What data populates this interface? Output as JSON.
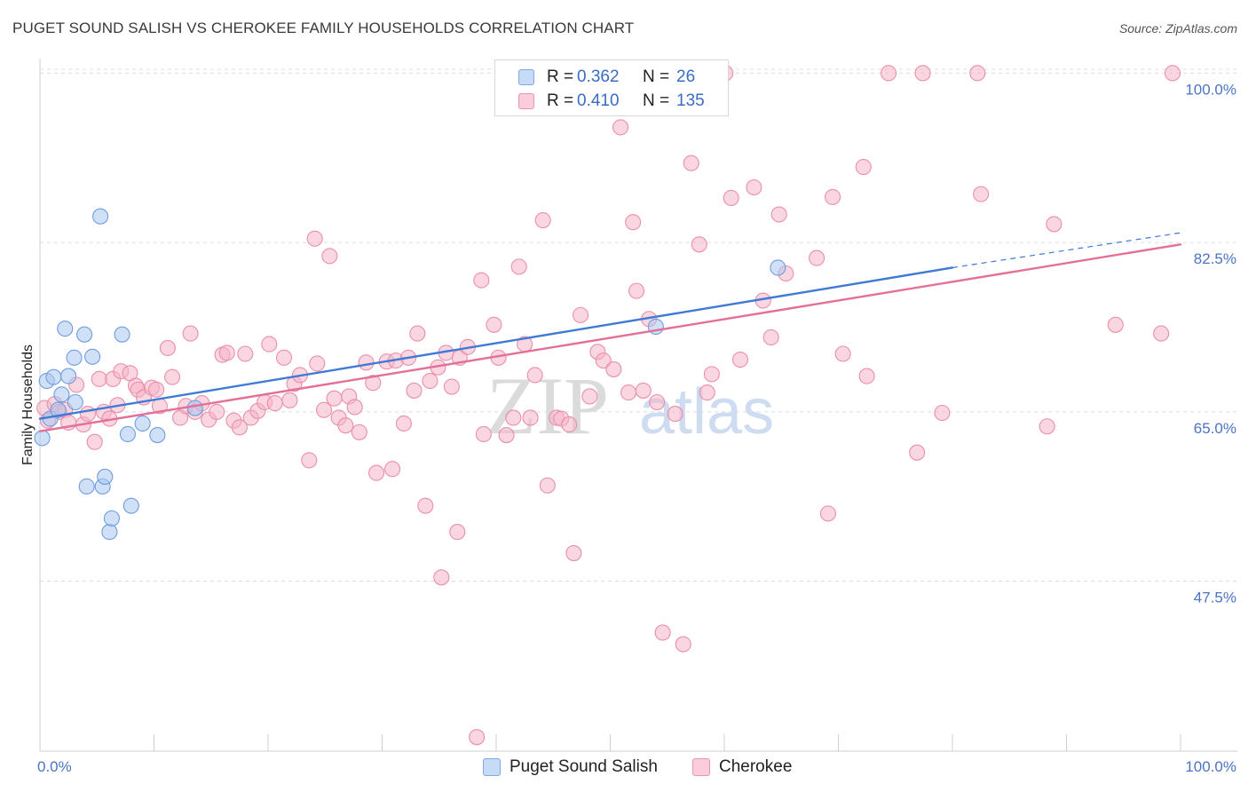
{
  "header": {
    "title": "PUGET SOUND SALISH VS CHEROKEE FAMILY HOUSEHOLDS CORRELATION CHART",
    "source": "Source: ZipAtlas.com"
  },
  "watermark": {
    "zip": "ZIP",
    "atlas": "atlas"
  },
  "legend": {
    "rows": [
      {
        "r_label": "R =",
        "r_value": "0.362",
        "n_label": "N =",
        "n_value": "26",
        "color": "#a9c8f0"
      },
      {
        "r_label": "R =",
        "r_value": "0.410",
        "n_label": "N =",
        "n_value": "135",
        "color": "#f6b4c8"
      }
    ]
  },
  "bottom_legend": {
    "items": [
      {
        "label": "Puget Sound Salish",
        "color": "#a9c8f0"
      },
      {
        "label": "Cherokee",
        "color": "#f6b4c8"
      }
    ]
  },
  "chart_data": {
    "type": "scatter",
    "title": "PUGET SOUND SALISH VS CHEROKEE FAMILY HOUSEHOLDS CORRELATION CHART",
    "xlabel": "",
    "ylabel": "Family Households",
    "xlim": [
      0,
      100
    ],
    "ylim": [
      30.5,
      101.5
    ],
    "x_tick_labels": [
      {
        "value": 0,
        "label": "0.0%"
      },
      {
        "value": 100,
        "label": "100.0%"
      }
    ],
    "y_ticks": [
      {
        "value": 100.0,
        "label": "100.0%"
      },
      {
        "value": 82.5,
        "label": "82.5%"
      },
      {
        "value": 65.0,
        "label": "65.0%"
      },
      {
        "value": 47.5,
        "label": "47.5%"
      }
    ],
    "x_minor_ticks": [
      10,
      20,
      30,
      40,
      50,
      60,
      70,
      80,
      90,
      100
    ],
    "grid": true,
    "series": [
      {
        "name": "Puget Sound Salish",
        "color": "#a9c8f0",
        "stroke": "#6f9de0",
        "trend_color": "#3f7ad6",
        "trend": {
          "x0": 0,
          "y0": 64.3,
          "x1": 80,
          "y1": 79.9,
          "dash_to_x": 100,
          "dash_to_y": 83.5
        },
        "points": [
          [
            0.2,
            62.3
          ],
          [
            0.6,
            68.2
          ],
          [
            0.9,
            64.3
          ],
          [
            1.2,
            68.6
          ],
          [
            1.6,
            65.2
          ],
          [
            1.9,
            66.8
          ],
          [
            2.2,
            73.6
          ],
          [
            2.5,
            68.7
          ],
          [
            3.0,
            70.6
          ],
          [
            3.1,
            66.0
          ],
          [
            3.9,
            73.0
          ],
          [
            4.1,
            57.3
          ],
          [
            4.6,
            70.7
          ],
          [
            5.3,
            85.2
          ],
          [
            5.5,
            57.3
          ],
          [
            5.7,
            58.3
          ],
          [
            6.1,
            52.6
          ],
          [
            6.3,
            54.0
          ],
          [
            7.2,
            73.0
          ],
          [
            7.7,
            62.7
          ],
          [
            8.0,
            55.3
          ],
          [
            9.0,
            63.8
          ],
          [
            10.3,
            62.6
          ],
          [
            13.6,
            65.4
          ],
          [
            64.7,
            79.9
          ],
          [
            54.0,
            73.8
          ]
        ]
      },
      {
        "name": "Cherokee",
        "color": "#f6b4c8",
        "stroke": "#ea8fac",
        "trend_color": "#e4709a",
        "trend": {
          "x0": 0,
          "y0": 63.0,
          "x1": 100,
          "y1": 82.3
        },
        "points": [
          [
            0.4,
            65.4
          ],
          [
            0.7,
            64.1
          ],
          [
            1.3,
            65.8
          ],
          [
            1.7,
            65.0
          ],
          [
            2.2,
            65.2
          ],
          [
            2.5,
            63.9
          ],
          [
            3.2,
            67.8
          ],
          [
            3.8,
            63.7
          ],
          [
            4.2,
            64.8
          ],
          [
            4.8,
            61.9
          ],
          [
            5.2,
            68.4
          ],
          [
            5.6,
            65.0
          ],
          [
            6.1,
            64.3
          ],
          [
            6.4,
            68.4
          ],
          [
            6.8,
            65.7
          ],
          [
            7.1,
            69.2
          ],
          [
            7.9,
            69.0
          ],
          [
            8.4,
            67.7
          ],
          [
            8.6,
            67.3
          ],
          [
            9.1,
            66.5
          ],
          [
            9.8,
            67.5
          ],
          [
            10.2,
            67.3
          ],
          [
            10.5,
            65.6
          ],
          [
            11.2,
            71.6
          ],
          [
            11.6,
            68.6
          ],
          [
            12.3,
            64.4
          ],
          [
            12.8,
            65.6
          ],
          [
            13.2,
            73.1
          ],
          [
            13.6,
            65.0
          ],
          [
            14.2,
            65.9
          ],
          [
            14.8,
            64.2
          ],
          [
            15.5,
            65.0
          ],
          [
            16.0,
            70.9
          ],
          [
            16.4,
            71.1
          ],
          [
            17.0,
            64.1
          ],
          [
            17.5,
            63.4
          ],
          [
            18.0,
            71.0
          ],
          [
            18.5,
            64.4
          ],
          [
            19.1,
            65.1
          ],
          [
            19.7,
            66.0
          ],
          [
            20.1,
            72.0
          ],
          [
            20.6,
            65.9
          ],
          [
            21.4,
            70.6
          ],
          [
            21.9,
            66.2
          ],
          [
            22.3,
            67.9
          ],
          [
            22.8,
            68.8
          ],
          [
            23.6,
            60.0
          ],
          [
            24.1,
            82.9
          ],
          [
            24.3,
            70.0
          ],
          [
            24.9,
            65.2
          ],
          [
            25.4,
            81.1
          ],
          [
            25.8,
            66.4
          ],
          [
            26.2,
            64.4
          ],
          [
            26.8,
            63.6
          ],
          [
            27.1,
            66.6
          ],
          [
            27.6,
            65.5
          ],
          [
            28.0,
            62.9
          ],
          [
            28.6,
            70.1
          ],
          [
            29.2,
            68.0
          ],
          [
            29.5,
            58.7
          ],
          [
            30.4,
            70.2
          ],
          [
            30.9,
            59.1
          ],
          [
            31.2,
            70.3
          ],
          [
            31.9,
            63.8
          ],
          [
            32.3,
            70.6
          ],
          [
            32.8,
            67.2
          ],
          [
            33.1,
            73.1
          ],
          [
            33.8,
            55.3
          ],
          [
            34.2,
            68.2
          ],
          [
            34.9,
            69.6
          ],
          [
            35.2,
            47.9
          ],
          [
            35.6,
            71.1
          ],
          [
            36.1,
            67.6
          ],
          [
            36.6,
            52.6
          ],
          [
            36.8,
            70.6
          ],
          [
            37.5,
            71.7
          ],
          [
            38.3,
            31.4
          ],
          [
            38.7,
            78.6
          ],
          [
            38.9,
            62.7
          ],
          [
            39.8,
            74.0
          ],
          [
            40.2,
            70.6
          ],
          [
            40.9,
            62.6
          ],
          [
            41.5,
            64.4
          ],
          [
            42.0,
            80.0
          ],
          [
            42.5,
            72.0
          ],
          [
            43.0,
            64.4
          ],
          [
            43.4,
            68.8
          ],
          [
            44.1,
            84.8
          ],
          [
            44.5,
            57.4
          ],
          [
            45.3,
            64.4
          ],
          [
            45.7,
            64.3
          ],
          [
            46.4,
            63.7
          ],
          [
            46.8,
            50.4
          ],
          [
            47.4,
            75.0
          ],
          [
            48.2,
            66.6
          ],
          [
            48.9,
            71.2
          ],
          [
            49.4,
            70.3
          ],
          [
            50.3,
            69.4
          ],
          [
            50.9,
            94.4
          ],
          [
            51.6,
            67.0
          ],
          [
            52.0,
            84.6
          ],
          [
            52.3,
            77.5
          ],
          [
            52.9,
            67.2
          ],
          [
            53.4,
            74.6
          ],
          [
            54.1,
            66.0
          ],
          [
            54.6,
            42.2
          ],
          [
            55.7,
            64.8
          ],
          [
            56.4,
            41.0
          ],
          [
            57.1,
            90.7
          ],
          [
            57.8,
            82.3
          ],
          [
            58.5,
            67.0
          ],
          [
            58.9,
            68.9
          ],
          [
            60.1,
            100.0
          ],
          [
            60.6,
            87.1
          ],
          [
            61.4,
            70.4
          ],
          [
            62.6,
            88.2
          ],
          [
            63.4,
            76.5
          ],
          [
            64.1,
            72.7
          ],
          [
            64.8,
            85.4
          ],
          [
            65.4,
            79.3
          ],
          [
            68.1,
            80.9
          ],
          [
            69.1,
            54.5
          ],
          [
            69.5,
            87.2
          ],
          [
            70.4,
            71.0
          ],
          [
            72.2,
            90.3
          ],
          [
            74.4,
            100.0
          ],
          [
            77.4,
            100.0
          ],
          [
            76.9,
            60.8
          ],
          [
            79.1,
            64.9
          ],
          [
            82.2,
            100.0
          ],
          [
            82.5,
            87.5
          ],
          [
            88.3,
            63.5
          ],
          [
            88.9,
            84.4
          ],
          [
            94.3,
            74.0
          ],
          [
            98.3,
            73.1
          ],
          [
            99.3,
            100.0
          ],
          [
            72.5,
            68.7
          ]
        ]
      }
    ]
  }
}
